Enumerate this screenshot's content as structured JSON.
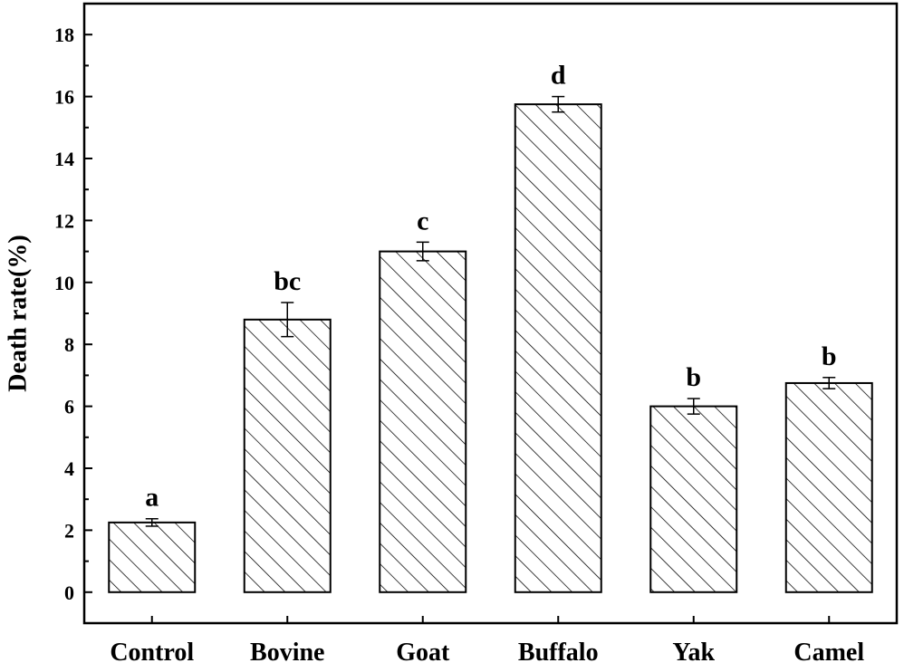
{
  "chart_data": {
    "type": "bar",
    "ylabel": "Death rate(%)",
    "xlabel": "",
    "ylim": [
      -1,
      19
    ],
    "yticks": [
      0,
      2,
      4,
      6,
      8,
      10,
      12,
      14,
      16,
      18
    ],
    "categories": [
      "Control",
      "Bovine",
      "Goat",
      "Buffalo",
      "Yak",
      "Camel"
    ],
    "values": [
      2.25,
      8.8,
      11.0,
      15.75,
      6.0,
      6.75
    ],
    "errors": [
      0.12,
      0.55,
      0.3,
      0.25,
      0.25,
      0.18
    ],
    "significance_labels": [
      "a",
      "bc",
      "c",
      "d",
      "b",
      "b"
    ],
    "bar_fill": "hatched",
    "grid": false,
    "legend": "none"
  }
}
